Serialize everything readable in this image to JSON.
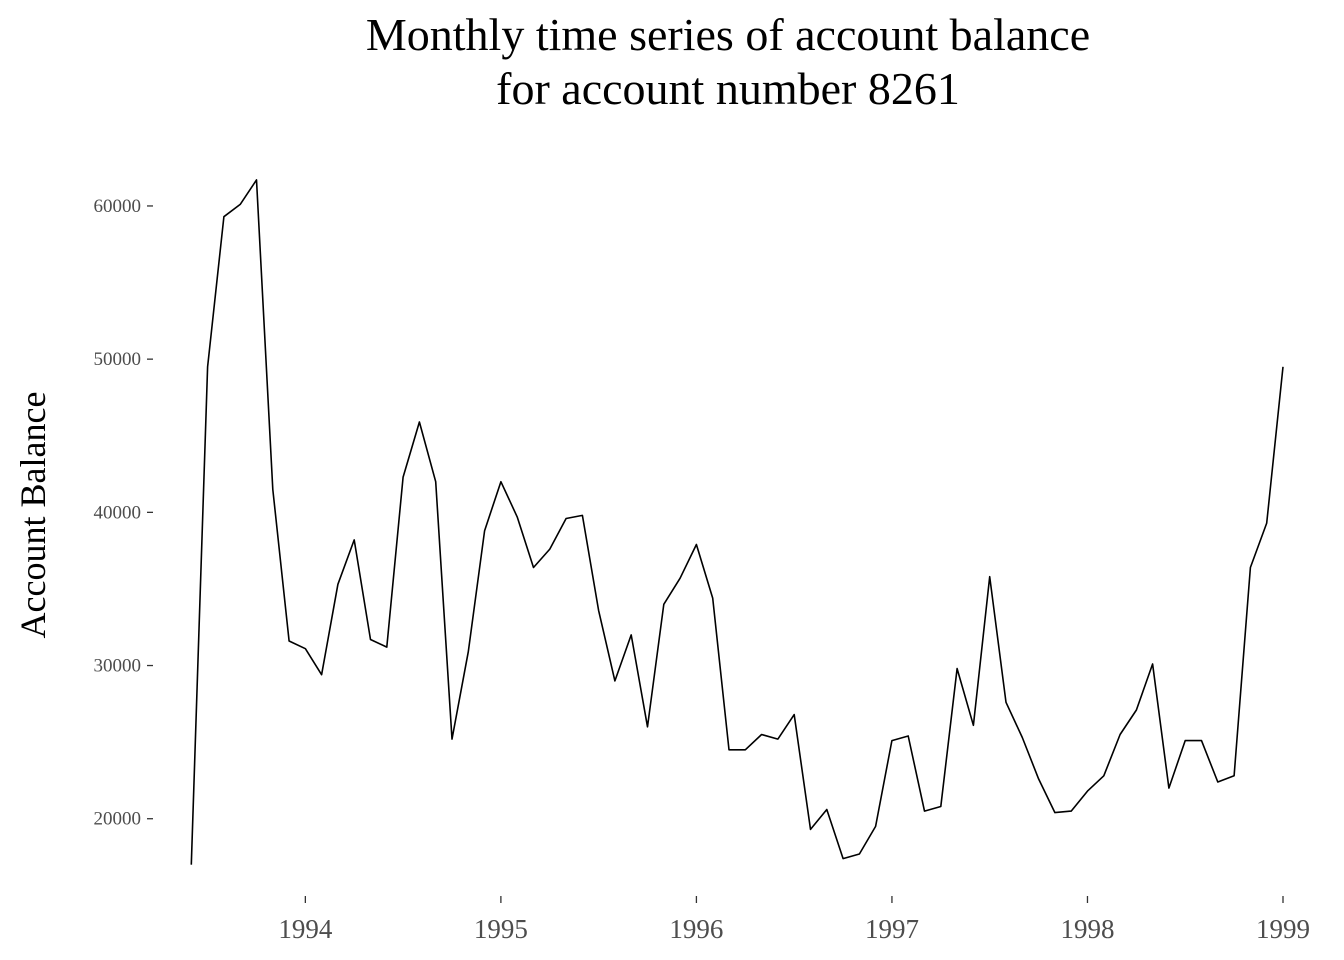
{
  "chart_data": {
    "type": "line",
    "title": [
      "Monthly time series of account balance",
      "for account number 8261"
    ],
    "xlabel": "",
    "ylabel": "Account Balance",
    "xlim": [
      "1993-05",
      "1999-01"
    ],
    "ylim": [
      16000,
      63000
    ],
    "grid": false,
    "legend": "none",
    "x_ticks": [
      "1994",
      "1995",
      "1996",
      "1997",
      "1998",
      "1999"
    ],
    "y_ticks": [
      "20000",
      "30000",
      "40000",
      "50000",
      "60000"
    ],
    "series": [
      {
        "color": "#000000",
        "x": [
          "1993-06",
          "1993-07",
          "1993-08",
          "1993-09",
          "1993-10",
          "1993-11",
          "1993-12",
          "1994-01",
          "1994-02",
          "1994-03",
          "1994-04",
          "1994-05",
          "1994-06",
          "1994-07",
          "1994-08",
          "1994-09",
          "1994-10",
          "1994-11",
          "1994-12",
          "1995-01",
          "1995-02",
          "1995-03",
          "1995-04",
          "1995-05",
          "1995-06",
          "1995-07",
          "1995-08",
          "1995-09",
          "1995-10",
          "1995-11",
          "1995-12",
          "1996-01",
          "1996-02",
          "1996-03",
          "1996-04",
          "1996-05",
          "1996-06",
          "1996-07",
          "1996-08",
          "1996-09",
          "1996-10",
          "1996-11",
          "1996-12",
          "1997-01",
          "1997-02",
          "1997-03",
          "1997-04",
          "1997-05",
          "1997-06",
          "1997-07",
          "1997-08",
          "1997-09",
          "1997-10",
          "1997-11",
          "1997-12",
          "1998-01",
          "1998-02",
          "1998-03",
          "1998-04",
          "1998-05",
          "1998-06",
          "1998-07",
          "1998-08",
          "1998-09",
          "1998-10",
          "1998-11",
          "1998-12",
          "1999-01"
        ],
        "y": [
          17000,
          49500,
          59300,
          60100,
          61700,
          41500,
          31600,
          31100,
          29400,
          35300,
          38200,
          31700,
          31200,
          42300,
          45900,
          42000,
          25200,
          30900,
          38800,
          42000,
          39700,
          36400,
          37600,
          39600,
          39800,
          33600,
          29000,
          32000,
          26000,
          34000,
          35700,
          37900,
          34400,
          24500,
          24500,
          25500,
          25200,
          26800,
          19300,
          20600,
          17400,
          17700,
          19500,
          25100,
          25400,
          20500,
          20800,
          29800,
          26100,
          35800,
          27600,
          25300,
          22600,
          20400,
          20500,
          21800,
          22800,
          25500,
          27100,
          30100,
          22000,
          25100,
          25100,
          22400,
          22800,
          36400,
          39300,
          49500
        ]
      }
    ]
  }
}
